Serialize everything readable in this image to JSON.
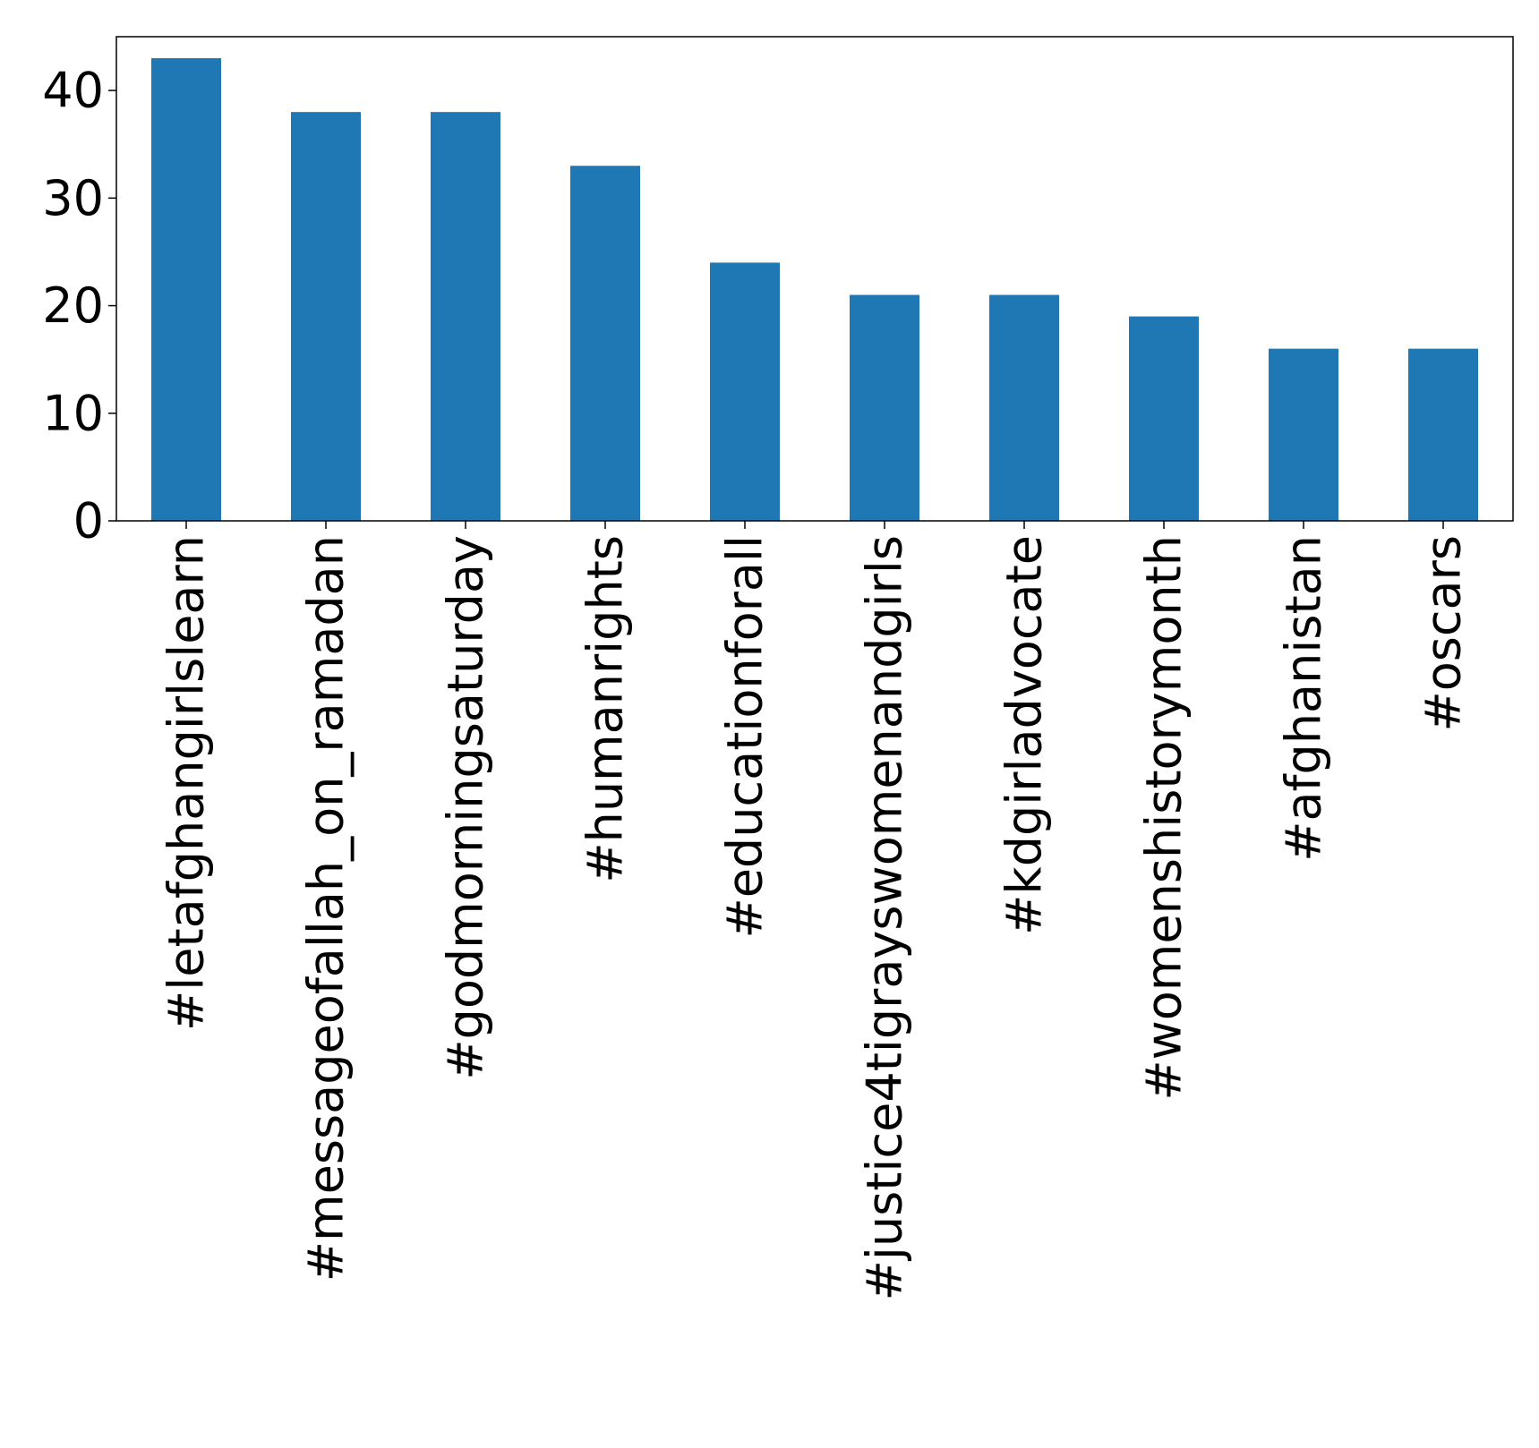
{
  "chart_data": {
    "type": "bar",
    "title": "",
    "xlabel": "",
    "ylabel": "",
    "categories": [
      "#letafghangirlslearn",
      "#messageofallah_on_ramadan",
      "#godmorningsaturday",
      "#humanrights",
      "#educationforall",
      "#justice4tigrayswomenandgirls",
      "#kdgirladvocate",
      "#womenshistorymonth",
      "#afghanistan",
      "#oscars"
    ],
    "values": [
      43,
      38,
      38,
      33,
      24,
      21,
      21,
      19,
      16,
      16
    ],
    "ylim": [
      0,
      45
    ],
    "yticks": [
      0,
      10,
      20,
      30,
      40
    ],
    "grid": false,
    "legend": "none",
    "colors": {
      "bar": "#1f77b4",
      "axis": "#000000",
      "background": "#ffffff"
    }
  }
}
